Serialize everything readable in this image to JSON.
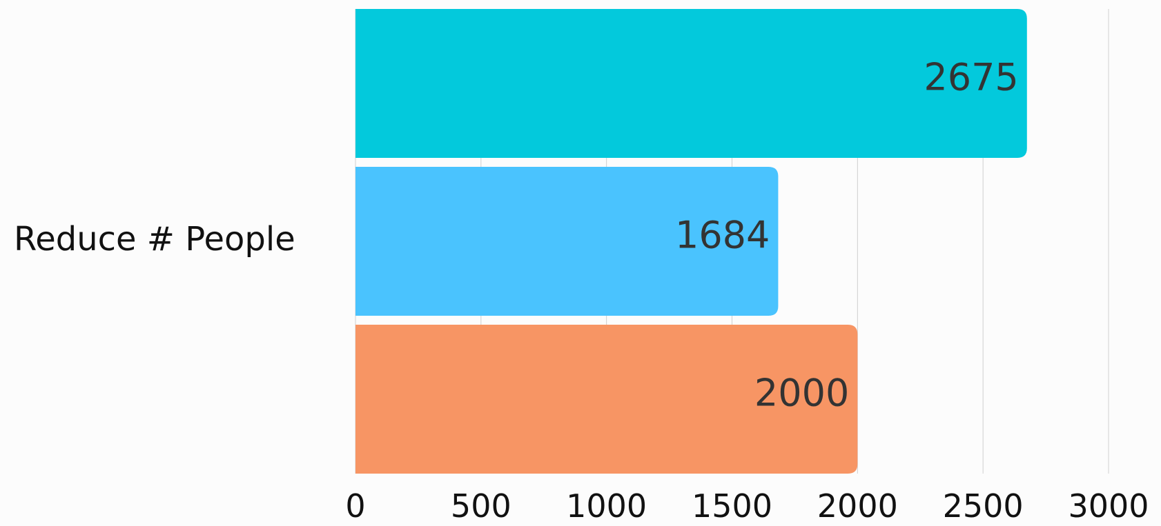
{
  "chart_data": {
    "type": "bar",
    "orientation": "horizontal",
    "categories": [
      "Reduce # People"
    ],
    "series": [
      {
        "values": [
          2675
        ],
        "color": "#03c9dc"
      },
      {
        "values": [
          1684
        ],
        "color": "#4ac3fe"
      },
      {
        "values": [
          2000
        ],
        "color": "#f79564"
      }
    ],
    "xlim": [
      0,
      3000
    ],
    "xticks": [
      "0",
      "500",
      "1000",
      "1500",
      "2000",
      "2500",
      "3000"
    ],
    "grid": true,
    "data_labels": [
      "2675",
      "1684",
      "2000"
    ],
    "title": "",
    "xlabel": "",
    "ylabel": ""
  }
}
